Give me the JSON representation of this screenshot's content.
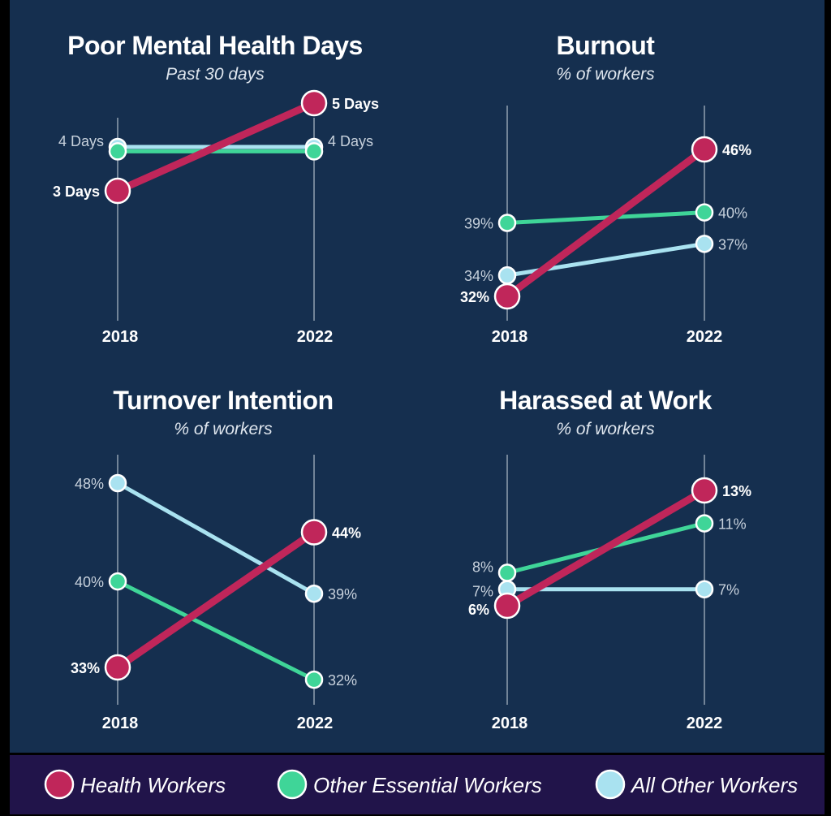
{
  "colors": {
    "background": "#152f4f",
    "legend_background": "#21144a",
    "Health Workers": "#c0265a",
    "Other Essential Workers": "#3fd598",
    "All Other Workers": "#a9e2f0"
  },
  "legend": {
    "items": [
      "Health Workers",
      "Other Essential Workers",
      "All Other Workers"
    ]
  },
  "chart_data": [
    {
      "type": "line",
      "title": "Poor Mental Health Days",
      "subtitle": "Past 30 days",
      "x": [
        "2018",
        "2022"
      ],
      "series": [
        {
          "name": "Health Workers",
          "values": [
            3,
            5
          ],
          "labels": [
            "3 Days",
            "5 Days"
          ]
        },
        {
          "name": "Other Essential Workers",
          "values": [
            3.9,
            3.9
          ],
          "labels": [
            "",
            ""
          ]
        },
        {
          "name": "All Other Workers",
          "values": [
            4,
            4
          ],
          "labels": [
            "4 Days",
            "4 Days"
          ]
        }
      ]
    },
    {
      "type": "line",
      "title": "Burnout",
      "subtitle": "% of workers",
      "x": [
        "2018",
        "2022"
      ],
      "series": [
        {
          "name": "Health Workers",
          "values": [
            32,
            46
          ],
          "labels": [
            "32%",
            "46%"
          ]
        },
        {
          "name": "Other Essential Workers",
          "values": [
            39,
            40
          ],
          "labels": [
            "39%",
            "40%"
          ]
        },
        {
          "name": "All Other Workers",
          "values": [
            34,
            37
          ],
          "labels": [
            "34%",
            "37%"
          ]
        }
      ]
    },
    {
      "type": "line",
      "title": "Turnover Intention",
      "subtitle": "% of workers",
      "x": [
        "2018",
        "2022"
      ],
      "series": [
        {
          "name": "Health Workers",
          "values": [
            33,
            44
          ],
          "labels": [
            "33%",
            "44%"
          ]
        },
        {
          "name": "Other Essential Workers",
          "values": [
            40,
            32
          ],
          "labels": [
            "40%",
            "32%"
          ]
        },
        {
          "name": "All Other Workers",
          "values": [
            48,
            39
          ],
          "labels": [
            "48%",
            "39%"
          ]
        }
      ]
    },
    {
      "type": "line",
      "title": "Harassed at Work",
      "subtitle": "% of workers",
      "x": [
        "2018",
        "2022"
      ],
      "series": [
        {
          "name": "Health Workers",
          "values": [
            6,
            13
          ],
          "labels": [
            "6%",
            "13%"
          ]
        },
        {
          "name": "Other Essential Workers",
          "values": [
            8,
            11
          ],
          "labels": [
            "8%",
            "11%"
          ]
        },
        {
          "name": "All Other Workers",
          "values": [
            7,
            7
          ],
          "labels": [
            "7%",
            "7%"
          ]
        }
      ]
    }
  ]
}
